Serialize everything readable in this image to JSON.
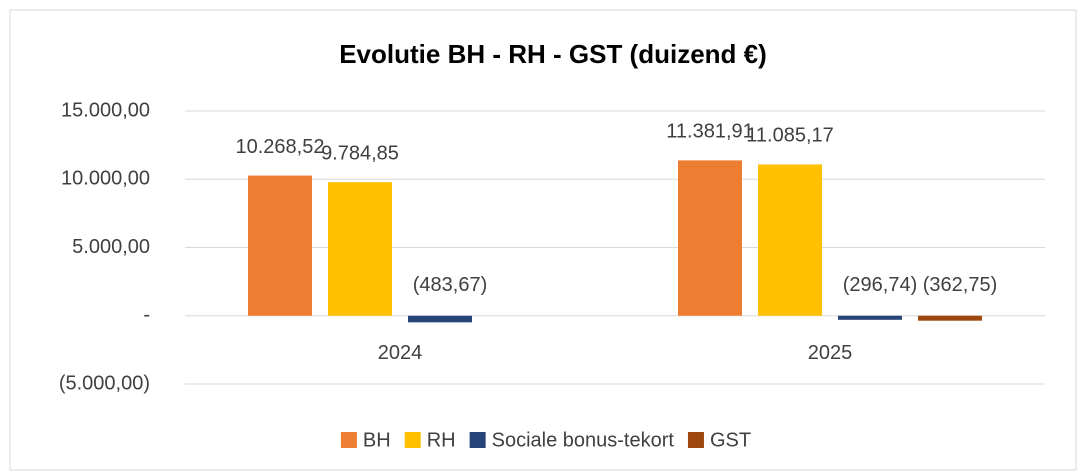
{
  "chart_data": {
    "type": "bar",
    "title": "Evolutie BH - RH - GST (duizend €)",
    "categories": [
      "2024",
      "2025"
    ],
    "series": [
      {
        "name": "BH",
        "color": "#ed7d31",
        "values": [
          10268.52,
          11381.91
        ],
        "value_labels": [
          "10.268,52",
          "11.381,91"
        ]
      },
      {
        "name": "RH",
        "color": "#ffc000",
        "values": [
          9784.85,
          11085.17
        ],
        "value_labels": [
          "9.784,85",
          "11.085,17"
        ]
      },
      {
        "name": "Sociale bonus-tekort",
        "color": "#264478",
        "values": [
          -483.67,
          -296.74
        ],
        "value_labels": [
          "(483,67)",
          "(296,74)"
        ]
      },
      {
        "name": "GST",
        "color": "#9e480e",
        "values": [
          null,
          -362.75
        ],
        "value_labels": [
          null,
          "(362,75)"
        ]
      }
    ],
    "ylim": [
      -5000,
      15000
    ],
    "yticks": [
      {
        "value": -5000,
        "label": "(5.000,00)"
      },
      {
        "value": 0,
        "label": "-"
      },
      {
        "value": 5000,
        "label": "5.000,00"
      },
      {
        "value": 10000,
        "label": "10.000,00"
      },
      {
        "value": 15000,
        "label": "15.000,00"
      }
    ],
    "grid": true,
    "legend": "bottom"
  }
}
